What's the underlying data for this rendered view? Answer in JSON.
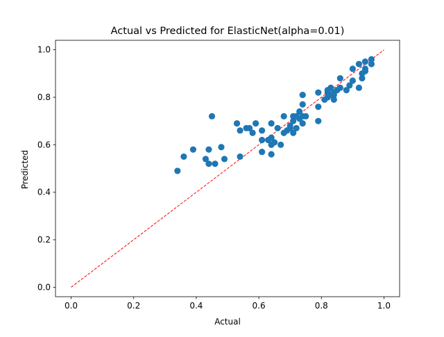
{
  "chart_data": {
    "type": "scatter",
    "title": "Actual vs Predicted for ElasticNet(alpha=0.01)",
    "xlabel": "Actual",
    "ylabel": "Predicted",
    "xlim": [
      -0.05,
      1.05
    ],
    "ylim": [
      -0.04,
      1.04
    ],
    "xticks": [
      0.0,
      0.2,
      0.4,
      0.6,
      0.8,
      1.0
    ],
    "xtick_labels": [
      "0.0",
      "0.2",
      "0.4",
      "0.6",
      "0.8",
      "1.0"
    ],
    "yticks": [
      0.0,
      0.2,
      0.4,
      0.6,
      0.8,
      1.0
    ],
    "ytick_labels": [
      "0.0",
      "0.2",
      "0.4",
      "0.6",
      "0.8",
      "1.0"
    ],
    "grid": false,
    "point_color": "#1f77b4",
    "reference_line": {
      "x": [
        0.0,
        1.0
      ],
      "y": [
        0.0,
        1.0
      ],
      "color": "#ff0000",
      "style": "dashed"
    },
    "points": [
      {
        "x": 0.34,
        "y": 0.49
      },
      {
        "x": 0.36,
        "y": 0.55
      },
      {
        "x": 0.39,
        "y": 0.58
      },
      {
        "x": 0.43,
        "y": 0.54
      },
      {
        "x": 0.44,
        "y": 0.52
      },
      {
        "x": 0.44,
        "y": 0.58
      },
      {
        "x": 0.45,
        "y": 0.72
      },
      {
        "x": 0.46,
        "y": 0.52
      },
      {
        "x": 0.48,
        "y": 0.59
      },
      {
        "x": 0.49,
        "y": 0.54
      },
      {
        "x": 0.53,
        "y": 0.69
      },
      {
        "x": 0.54,
        "y": 0.66
      },
      {
        "x": 0.54,
        "y": 0.55
      },
      {
        "x": 0.56,
        "y": 0.67
      },
      {
        "x": 0.57,
        "y": 0.67
      },
      {
        "x": 0.58,
        "y": 0.65
      },
      {
        "x": 0.59,
        "y": 0.69
      },
      {
        "x": 0.61,
        "y": 0.66
      },
      {
        "x": 0.61,
        "y": 0.62
      },
      {
        "x": 0.61,
        "y": 0.57
      },
      {
        "x": 0.63,
        "y": 0.62
      },
      {
        "x": 0.64,
        "y": 0.69
      },
      {
        "x": 0.64,
        "y": 0.63
      },
      {
        "x": 0.64,
        "y": 0.6
      },
      {
        "x": 0.64,
        "y": 0.56
      },
      {
        "x": 0.65,
        "y": 0.61
      },
      {
        "x": 0.66,
        "y": 0.67
      },
      {
        "x": 0.67,
        "y": 0.6
      },
      {
        "x": 0.68,
        "y": 0.72
      },
      {
        "x": 0.68,
        "y": 0.65
      },
      {
        "x": 0.69,
        "y": 0.66
      },
      {
        "x": 0.7,
        "y": 0.67
      },
      {
        "x": 0.7,
        "y": 0.68
      },
      {
        "x": 0.71,
        "y": 0.65
      },
      {
        "x": 0.71,
        "y": 0.7
      },
      {
        "x": 0.71,
        "y": 0.72
      },
      {
        "x": 0.72,
        "y": 0.67
      },
      {
        "x": 0.72,
        "y": 0.72
      },
      {
        "x": 0.73,
        "y": 0.74
      },
      {
        "x": 0.73,
        "y": 0.71
      },
      {
        "x": 0.74,
        "y": 0.69
      },
      {
        "x": 0.74,
        "y": 0.72
      },
      {
        "x": 0.74,
        "y": 0.77
      },
      {
        "x": 0.74,
        "y": 0.81
      },
      {
        "x": 0.75,
        "y": 0.72
      },
      {
        "x": 0.79,
        "y": 0.7
      },
      {
        "x": 0.79,
        "y": 0.76
      },
      {
        "x": 0.79,
        "y": 0.82
      },
      {
        "x": 0.81,
        "y": 0.79
      },
      {
        "x": 0.82,
        "y": 0.8
      },
      {
        "x": 0.82,
        "y": 0.82
      },
      {
        "x": 0.82,
        "y": 0.83
      },
      {
        "x": 0.83,
        "y": 0.81
      },
      {
        "x": 0.83,
        "y": 0.84
      },
      {
        "x": 0.84,
        "y": 0.79
      },
      {
        "x": 0.84,
        "y": 0.81
      },
      {
        "x": 0.84,
        "y": 0.82
      },
      {
        "x": 0.85,
        "y": 0.83
      },
      {
        "x": 0.86,
        "y": 0.84
      },
      {
        "x": 0.86,
        "y": 0.88
      },
      {
        "x": 0.88,
        "y": 0.83
      },
      {
        "x": 0.89,
        "y": 0.85
      },
      {
        "x": 0.9,
        "y": 0.87
      },
      {
        "x": 0.9,
        "y": 0.92
      },
      {
        "x": 0.92,
        "y": 0.84
      },
      {
        "x": 0.92,
        "y": 0.94
      },
      {
        "x": 0.93,
        "y": 0.88
      },
      {
        "x": 0.93,
        "y": 0.9
      },
      {
        "x": 0.94,
        "y": 0.91
      },
      {
        "x": 0.94,
        "y": 0.92
      },
      {
        "x": 0.94,
        "y": 0.95
      },
      {
        "x": 0.96,
        "y": 0.94
      },
      {
        "x": 0.96,
        "y": 0.96
      }
    ]
  }
}
